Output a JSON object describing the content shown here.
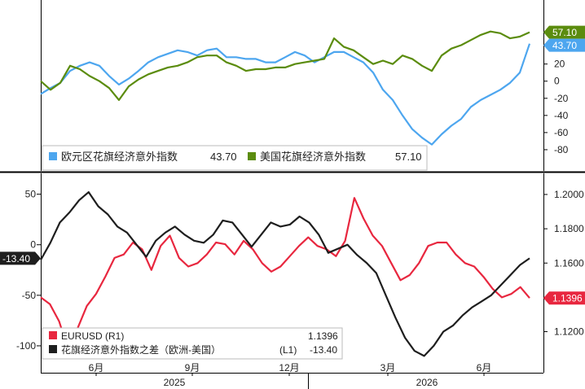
{
  "chart_data": [
    {
      "type": "line",
      "panel": "top",
      "grid": false,
      "legend_position": "bottom-left",
      "y_axis": {
        "side": "right",
        "ylim": [
          -100,
          90
        ],
        "ticks": [
          -80,
          -60,
          -40,
          -20,
          0,
          20
        ]
      },
      "series": [
        {
          "name": "欧元区花旗经济意外指数",
          "last_value": "43.70",
          "color": "#4da6ef",
          "values": [
            -15,
            -8,
            -2,
            12,
            18,
            22,
            18,
            6,
            -4,
            3,
            12,
            22,
            28,
            32,
            36,
            34,
            30,
            36,
            38,
            28,
            28,
            26,
            26,
            22,
            22,
            28,
            34,
            30,
            22,
            28,
            34,
            34,
            28,
            22,
            10,
            -10,
            -22,
            -40,
            -56,
            -66,
            -74,
            -62,
            -52,
            -44,
            -30,
            -22,
            -16,
            -10,
            -2,
            10,
            43.7
          ]
        },
        {
          "name": "美国花旗经济意外指数",
          "last_value": "57.10",
          "color": "#5b8c0e",
          "values": [
            0,
            -10,
            -2,
            18,
            14,
            6,
            0,
            -8,
            -22,
            -6,
            2,
            8,
            12,
            16,
            18,
            22,
            28,
            30,
            30,
            22,
            18,
            12,
            14,
            14,
            16,
            16,
            20,
            22,
            24,
            26,
            50,
            40,
            36,
            28,
            20,
            24,
            20,
            30,
            26,
            18,
            12,
            30,
            38,
            42,
            48,
            54,
            58,
            56,
            50,
            52,
            57.1
          ]
        }
      ]
    },
    {
      "type": "line",
      "panel": "bottom",
      "grid": false,
      "legend_position": "bottom-left",
      "x_axis": {
        "tick_labels": [
          "6月",
          "9月",
          "12月",
          "3月",
          "6月"
        ],
        "year_labels": [
          "2025",
          "2026"
        ]
      },
      "y_axis_left": {
        "label": "L1",
        "ylim": [
          -125,
          65
        ],
        "ticks": [
          50,
          0,
          -50,
          -100
        ]
      },
      "y_axis_right": {
        "label": "R1",
        "ylim": [
          1.097,
          1.209
        ],
        "ticks": [
          "1.2000",
          "1.1800",
          "1.1600",
          "1.1400",
          "1.1200"
        ]
      },
      "series": [
        {
          "name": "EURUSD (R1)",
          "axis": "right",
          "last_value": "1.1396",
          "color": "#e8273f",
          "values": [
            1.14,
            1.136,
            1.126,
            1.109,
            1.122,
            1.135,
            1.142,
            1.152,
            1.163,
            1.165,
            1.172,
            1.168,
            1.156,
            1.17,
            1.176,
            1.163,
            1.158,
            1.16,
            1.165,
            1.172,
            1.171,
            1.165,
            1.173,
            1.168,
            1.16,
            1.155,
            1.158,
            1.164,
            1.17,
            1.175,
            1.17,
            1.168,
            1.164,
            1.173,
            1.198,
            1.186,
            1.176,
            1.17,
            1.16,
            1.15,
            1.153,
            1.16,
            1.17,
            1.172,
            1.172,
            1.165,
            1.16,
            1.158,
            1.152,
            1.145,
            1.14,
            1.142,
            1.146,
            1.1396
          ]
        },
        {
          "name": "花旗经济意外指数之差（欧洲-美国）",
          "axis": "left",
          "last_value": "-13.40",
          "color": "#1e1e1e",
          "values": [
            -15,
            2,
            22,
            32,
            44,
            52,
            38,
            30,
            18,
            12,
            0,
            -12,
            4,
            12,
            18,
            10,
            4,
            2,
            10,
            24,
            22,
            10,
            -2,
            10,
            22,
            18,
            20,
            28,
            22,
            10,
            -8,
            -4,
            0,
            -10,
            -18,
            -28,
            -50,
            -72,
            -92,
            -105,
            -110,
            -100,
            -86,
            -80,
            -70,
            -62,
            -56,
            -50,
            -40,
            -30,
            -20,
            -13.4
          ]
        }
      ]
    }
  ]
}
